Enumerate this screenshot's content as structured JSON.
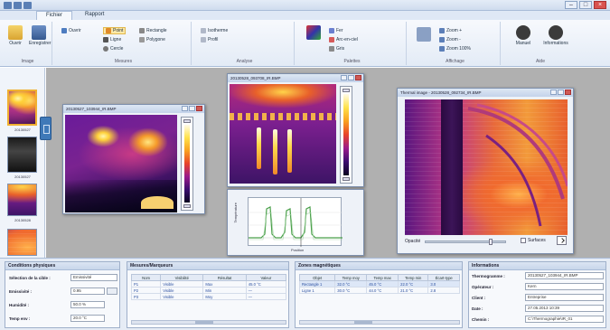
{
  "ribbon": {
    "tabs": [
      "Fichier",
      "Rapport"
    ],
    "groups": [
      {
        "label": "Image",
        "buttons": [
          "Ouvrir",
          "Enregistrer"
        ]
      },
      {
        "label": "Mesures",
        "buttons": [
          "Point",
          "Ligne",
          "Cercle",
          "Rectangle",
          "Polygone"
        ]
      },
      {
        "label": "Analyse",
        "buttons": [
          "Isotherme",
          "Profil"
        ]
      },
      {
        "label": "Palettes",
        "buttons": [
          "Fer",
          "Arc-en-ciel",
          "Gris"
        ]
      },
      {
        "label": "Affichage",
        "buttons": [
          "Zoom +",
          "Zoom -",
          "Zoom 100%"
        ]
      },
      {
        "label": "Aide",
        "buttons": [
          "Manuel",
          "Informations"
        ]
      }
    ]
  },
  "windows": {
    "w1": {
      "title": "20130527_103944_IR.BMP"
    },
    "w2": {
      "title": "20130528_093708_IR.BMP"
    },
    "w3": {
      "title": "Thermal image - 20130528_092734_IR.BMP"
    },
    "graph": {
      "ylabel": "Température",
      "xlabel": "Position"
    }
  },
  "thumbnails": [
    "20130527",
    "20130527",
    "20130528",
    "20130528"
  ],
  "panels": {
    "physical": {
      "title": "Conditions physiques",
      "rows": [
        {
          "label": "Sélection de la cible :",
          "value": "Emissivité"
        },
        {
          "label": "Emissivité :",
          "value": "0.95"
        },
        {
          "label": "Humidité :",
          "value": "50.0 %"
        },
        {
          "label": "Temp env :",
          "value": "20.0 °C"
        }
      ]
    },
    "measures": {
      "title": "Mesures/Marqueurs",
      "headers": [
        "Nom",
        "Visibilité",
        "Résultat",
        "Valeur"
      ],
      "rows": [
        [
          "P1",
          "Visible",
          "Max",
          "45.0 °C"
        ],
        [
          "P2",
          "Visible",
          "Min",
          "—"
        ],
        [
          "P3",
          "Visible",
          "Moy",
          "—"
        ]
      ]
    },
    "zones": {
      "title": "Zones magnétiques",
      "headers": [
        "Objet",
        "Temp moy",
        "Temp max",
        "Temp min",
        "Écart-type"
      ],
      "rows": [
        [
          "Rectangle 1",
          "32.0 °C",
          "45.0 °C",
          "22.0 °C",
          "3.0"
        ],
        [
          "Ligne 1",
          "30.0 °C",
          "44.0 °C",
          "21.0 °C",
          "2.8"
        ]
      ]
    },
    "info": {
      "title": "Informations",
      "rows": [
        {
          "label": "Thermogramme :",
          "value": "20130527_103944_IR.BMP"
        },
        {
          "label": "Opérateur :",
          "value": "Kern"
        },
        {
          "label": "Client :",
          "value": "Entreprise"
        },
        {
          "label": "Date :",
          "value": "27.05.2013 10:39"
        },
        {
          "label": "Chemin :",
          "value": "C:\\Thermographie\\IR_01"
        }
      ]
    }
  },
  "opacity": {
    "label": "Opacité",
    "checkbox": "Surfaces"
  }
}
